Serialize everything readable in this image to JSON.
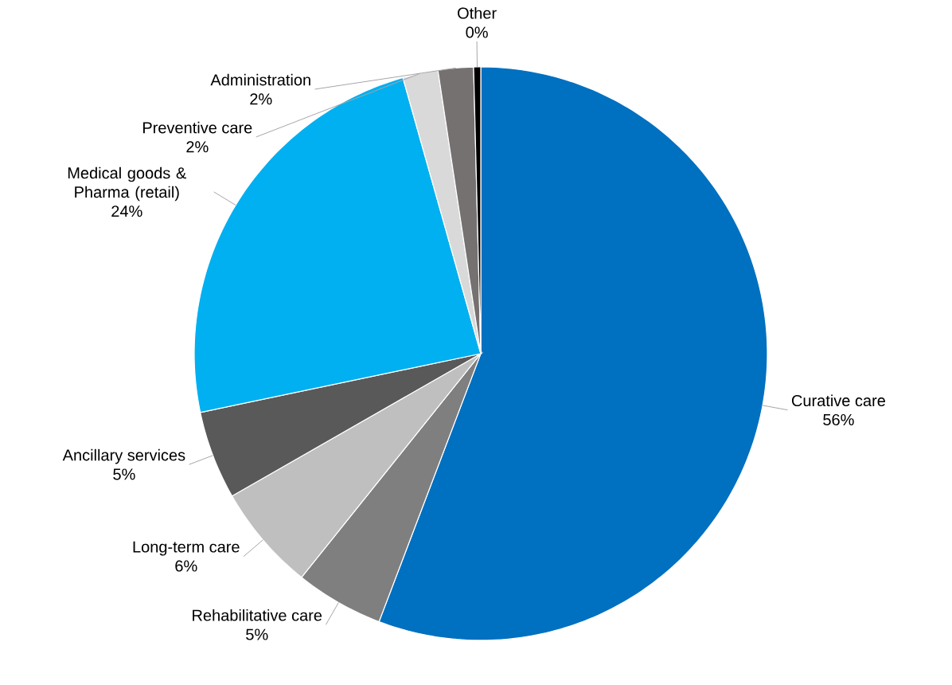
{
  "chart_data": {
    "type": "pie",
    "categories": [
      "Curative care",
      "Rehabilitative care",
      "Long-term care",
      "Ancillary services",
      "Medical goods & Pharma (retail)",
      "Preventive care",
      "Administration",
      "Other"
    ],
    "values": [
      56,
      5,
      6,
      5,
      24,
      2,
      2,
      0.4
    ],
    "value_labels": [
      "56%",
      "5%",
      "6%",
      "5%",
      "24%",
      "2%",
      "2%",
      "0%"
    ],
    "colors": [
      "#0070c0",
      "#7f7f7f",
      "#bfbfbf",
      "#595959",
      "#00b0f0",
      "#d9d9d9",
      "#767171",
      "#000000"
    ]
  }
}
